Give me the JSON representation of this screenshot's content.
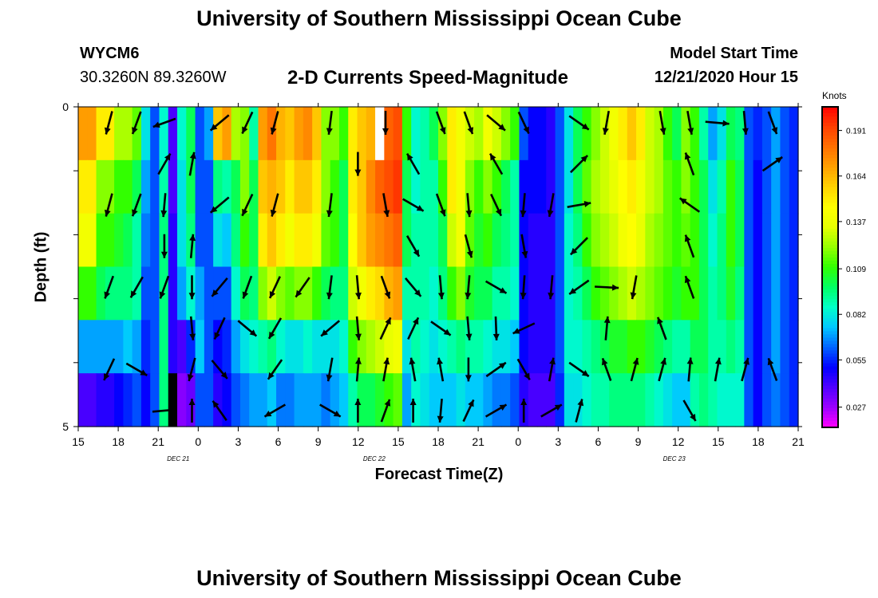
{
  "header": {
    "title": "University of Southern Mississippi Ocean Cube",
    "station": "WYCM6",
    "coords": "30.3260N 89.3260W",
    "plot_title": "2-D Currents Speed-Magnitude",
    "model_label": "Model Start Time",
    "model_time": "12/21/2020 Hour 15"
  },
  "footer": {
    "title": "University of Southern Mississippi Ocean Cube"
  },
  "chart_data": {
    "type": "heatmap",
    "title": "2-D Currents Speed-Magnitude",
    "xlabel": "Forecast Time(Z)",
    "ylabel": "Depth (ft)",
    "colorbar_label": "Knots",
    "x_tick_labels": [
      "15",
      "18",
      "21",
      "0",
      "3",
      "6",
      "9",
      "12",
      "15",
      "18",
      "21",
      "0",
      "3",
      "6",
      "9",
      "12",
      "15",
      "18",
      "21"
    ],
    "date_labels": [
      "DEC 21",
      "DEC 22",
      "DEC 23"
    ],
    "y_tick_labels": [
      "0",
      "5"
    ],
    "ylim": [
      0,
      5
    ],
    "colorbar_ticks": [
      "0.191",
      "0.164",
      "0.137",
      "0.109",
      "0.082",
      "0.055",
      "0.027"
    ],
    "colorscale": [
      "#ff00ff",
      "#9b00ff",
      "#5000ff",
      "#0000ff",
      "#0064ff",
      "#00c8ff",
      "#00ffc8",
      "#00ff64",
      "#32ff00",
      "#96ff00",
      "#e6ff00",
      "#ffff00",
      "#ffd200",
      "#ffa000",
      "#ff7000",
      "#ff4000",
      "#ff0000"
    ],
    "grid": false,
    "rows": [
      [
        0.17,
        0.17,
        0.15,
        0.15,
        0.125,
        0.125,
        0.115,
        0.08,
        0.06,
        0.085,
        0.04,
        0.085,
        0.1,
        0.06,
        0.07,
        0.16,
        0.17,
        0.125,
        0.12,
        0.09,
        0.17,
        0.18,
        0.165,
        0.16,
        0.17,
        0.175,
        0.16,
        0.12,
        0.12,
        0.11,
        0.15,
        0.16,
        0.165,
        0.175,
        0.185,
        0.19,
        0.11,
        0.085,
        0.09,
        0.1,
        0.12,
        0.15,
        0.14,
        0.13,
        0.125,
        0.14,
        0.13,
        0.12,
        0.11,
        0.06,
        0.05,
        0.05,
        0.045,
        0.06,
        0.08,
        0.1,
        0.11,
        0.12,
        0.13,
        0.14,
        0.15,
        0.16,
        0.15,
        0.13,
        0.125,
        0.11,
        0.1,
        0.12,
        0.11,
        0.09,
        0.07,
        0.08,
        0.1,
        0.095,
        0.06,
        0.055,
        0.06,
        0.07,
        0.06,
        0.055
      ],
      [
        0.15,
        0.15,
        0.12,
        0.12,
        0.11,
        0.11,
        0.1,
        0.07,
        0.06,
        0.09,
        0.04,
        0.08,
        0.1,
        0.06,
        0.06,
        0.095,
        0.09,
        0.1,
        0.12,
        0.1,
        0.16,
        0.165,
        0.16,
        0.15,
        0.16,
        0.16,
        0.15,
        0.12,
        0.11,
        0.1,
        0.15,
        0.16,
        0.175,
        0.185,
        0.19,
        0.195,
        0.1,
        0.085,
        0.09,
        0.09,
        0.11,
        0.15,
        0.14,
        0.12,
        0.11,
        0.12,
        0.11,
        0.1,
        0.09,
        0.05,
        0.05,
        0.05,
        0.045,
        0.06,
        0.08,
        0.1,
        0.115,
        0.125,
        0.13,
        0.135,
        0.145,
        0.15,
        0.14,
        0.13,
        0.125,
        0.115,
        0.11,
        0.12,
        0.11,
        0.1,
        0.08,
        0.09,
        0.11,
        0.1,
        0.06,
        0.05,
        0.06,
        0.07,
        0.06,
        0.055
      ],
      [
        0.14,
        0.14,
        0.11,
        0.11,
        0.105,
        0.1,
        0.09,
        0.065,
        0.06,
        0.095,
        0.045,
        0.08,
        0.095,
        0.06,
        0.06,
        0.08,
        0.075,
        0.095,
        0.11,
        0.1,
        0.15,
        0.16,
        0.15,
        0.14,
        0.15,
        0.15,
        0.14,
        0.115,
        0.11,
        0.1,
        0.145,
        0.16,
        0.17,
        0.175,
        0.18,
        0.185,
        0.1,
        0.09,
        0.09,
        0.09,
        0.1,
        0.13,
        0.14,
        0.115,
        0.105,
        0.11,
        0.1,
        0.095,
        0.09,
        0.05,
        0.045,
        0.045,
        0.045,
        0.06,
        0.085,
        0.095,
        0.11,
        0.12,
        0.125,
        0.13,
        0.14,
        0.145,
        0.135,
        0.125,
        0.12,
        0.115,
        0.11,
        0.115,
        0.11,
        0.1,
        0.085,
        0.095,
        0.11,
        0.1,
        0.06,
        0.05,
        0.06,
        0.07,
        0.06,
        0.055
      ],
      [
        0.11,
        0.11,
        0.1,
        0.095,
        0.095,
        0.095,
        0.09,
        0.06,
        0.06,
        0.095,
        0.045,
        0.07,
        0.085,
        0.07,
        0.06,
        0.06,
        0.06,
        0.085,
        0.1,
        0.095,
        0.12,
        0.13,
        0.12,
        0.115,
        0.12,
        0.12,
        0.11,
        0.1,
        0.095,
        0.095,
        0.13,
        0.14,
        0.15,
        0.155,
        0.165,
        0.17,
        0.09,
        0.09,
        0.09,
        0.085,
        0.095,
        0.11,
        0.12,
        0.105,
        0.1,
        0.1,
        0.09,
        0.09,
        0.085,
        0.05,
        0.045,
        0.045,
        0.045,
        0.06,
        0.085,
        0.09,
        0.1,
        0.11,
        0.115,
        0.12,
        0.125,
        0.13,
        0.125,
        0.12,
        0.115,
        0.11,
        0.105,
        0.11,
        0.11,
        0.1,
        0.09,
        0.095,
        0.105,
        0.095,
        0.06,
        0.05,
        0.06,
        0.07,
        0.06,
        0.055
      ],
      [
        0.07,
        0.07,
        0.07,
        0.07,
        0.07,
        0.075,
        0.07,
        0.055,
        0.06,
        0.095,
        0.045,
        0.04,
        0.055,
        0.075,
        0.06,
        0.05,
        0.055,
        0.07,
        0.08,
        0.085,
        0.09,
        0.095,
        0.085,
        0.08,
        0.08,
        0.085,
        0.08,
        0.08,
        0.08,
        0.085,
        0.11,
        0.12,
        0.125,
        0.13,
        0.135,
        0.14,
        0.08,
        0.09,
        0.085,
        0.08,
        0.085,
        0.09,
        0.095,
        0.09,
        0.09,
        0.085,
        0.08,
        0.08,
        0.075,
        0.05,
        0.045,
        0.045,
        0.045,
        0.06,
        0.085,
        0.085,
        0.09,
        0.095,
        0.1,
        0.105,
        0.105,
        0.11,
        0.11,
        0.105,
        0.1,
        0.095,
        0.09,
        0.09,
        0.1,
        0.1,
        0.09,
        0.09,
        0.095,
        0.09,
        0.06,
        0.05,
        0.06,
        0.07,
        0.06,
        0.055
      ],
      [
        0.04,
        0.04,
        0.045,
        0.045,
        0.05,
        0.055,
        0.06,
        0.05,
        0.06,
        0.095,
        0.04,
        0.03,
        0.035,
        0.06,
        0.06,
        0.045,
        0.05,
        0.06,
        0.065,
        0.07,
        0.07,
        0.075,
        0.065,
        0.065,
        0.07,
        0.07,
        0.07,
        0.065,
        0.07,
        0.075,
        0.09,
        0.1,
        0.1,
        0.105,
        0.11,
        0.115,
        0.07,
        0.085,
        0.08,
        0.075,
        0.075,
        0.075,
        0.08,
        0.075,
        0.075,
        0.07,
        0.065,
        0.065,
        0.06,
        0.045,
        0.04,
        0.04,
        0.04,
        0.055,
        0.08,
        0.08,
        0.085,
        0.09,
        0.09,
        0.095,
        0.095,
        0.095,
        0.095,
        0.09,
        0.085,
        0.08,
        0.075,
        0.075,
        0.09,
        0.095,
        0.09,
        0.085,
        0.085,
        0.085,
        0.06,
        0.05,
        0.06,
        0.065,
        0.06,
        0.055
      ]
    ],
    "special_cells": [
      {
        "col": 33,
        "row": 0,
        "color": "#ffffff"
      },
      {
        "col": 10,
        "row": 5,
        "color": "#000000"
      }
    ],
    "vectors": [
      [
        [
          1,
          195
        ],
        [
          2,
          200
        ],
        null,
        [
          3,
          250
        ],
        null,
        [
          5,
          230
        ],
        [
          6,
          205
        ],
        [
          7,
          195
        ],
        null,
        [
          9,
          187
        ],
        null,
        [
          11,
          180
        ],
        null,
        [
          13,
          160
        ],
        [
          14,
          160
        ],
        [
          15,
          130
        ],
        [
          16,
          155
        ],
        null,
        [
          18,
          125
        ],
        [
          19,
          190
        ],
        null,
        [
          21,
          170
        ],
        [
          22,
          170
        ],
        [
          23,
          95
        ],
        [
          24,
          175
        ],
        [
          25,
          160
        ]
      ],
      [
        null,
        null,
        null,
        [
          3,
          30
        ],
        [
          4,
          10
        ],
        null,
        null,
        null,
        null,
        null,
        [
          10,
          180
        ],
        null,
        [
          12,
          330
        ],
        null,
        null,
        [
          15,
          330
        ],
        null,
        null,
        [
          18,
          45
        ],
        null,
        null,
        null,
        [
          22,
          340
        ],
        null,
        null,
        [
          25,
          55
        ]
      ],
      [
        [
          1,
          195
        ],
        [
          2,
          200
        ],
        [
          3,
          185
        ],
        null,
        [
          5,
          230
        ],
        [
          6,
          205
        ],
        [
          7,
          195
        ],
        null,
        [
          9,
          187
        ],
        null,
        [
          11,
          170
        ],
        [
          12,
          120
        ],
        [
          13,
          160
        ],
        [
          14,
          175
        ],
        [
          15,
          155
        ],
        [
          16,
          185
        ],
        [
          17,
          190
        ],
        [
          18,
          80
        ],
        null,
        null,
        null,
        null,
        [
          22,
          305
        ],
        null,
        null,
        null
      ],
      [
        null,
        null,
        [
          3,
          180
        ],
        [
          4,
          5
        ],
        null,
        null,
        null,
        null,
        null,
        null,
        null,
        [
          12,
          150
        ],
        null,
        [
          14,
          165
        ],
        null,
        [
          16,
          170
        ],
        null,
        [
          18,
          225
        ],
        null,
        null,
        null,
        null,
        [
          22,
          340
        ],
        null,
        null,
        null
      ],
      [
        [
          1,
          200
        ],
        [
          2,
          210
        ],
        [
          3,
          200
        ],
        [
          4,
          180
        ],
        [
          5,
          220
        ],
        [
          6,
          200
        ],
        [
          7,
          205
        ],
        [
          8,
          215
        ],
        [
          9,
          187
        ],
        [
          10,
          175
        ],
        [
          11,
          160
        ],
        [
          12,
          140
        ],
        [
          13,
          175
        ],
        [
          14,
          185
        ],
        [
          15,
          120
        ],
        [
          16,
          184
        ],
        [
          17,
          185
        ],
        [
          18,
          235
        ],
        [
          19,
          93
        ],
        [
          20,
          190
        ],
        null,
        [
          22,
          340
        ],
        null,
        null,
        null
      ],
      [
        null,
        null,
        null,
        [
          4,
          175
        ],
        [
          5,
          205
        ],
        [
          6,
          130
        ],
        [
          7,
          210
        ],
        null,
        [
          9,
          230
        ],
        [
          10,
          175
        ],
        [
          11,
          25
        ],
        [
          12,
          25
        ],
        [
          13,
          125
        ],
        [
          14,
          175
        ],
        [
          15,
          178
        ],
        [
          16,
          245
        ],
        null,
        null,
        [
          19,
          5
        ],
        null,
        [
          21,
          340
        ],
        null,
        null,
        null,
        null
      ],
      [
        [
          1,
          205
        ],
        [
          2,
          120
        ],
        null,
        [
          4,
          195
        ],
        [
          5,
          140
        ],
        null,
        [
          7,
          215
        ],
        null,
        [
          9,
          190
        ],
        [
          10,
          5
        ],
        [
          11,
          10
        ],
        [
          12,
          350
        ],
        [
          13,
          350
        ],
        [
          14,
          180
        ],
        [
          15,
          55
        ],
        [
          16,
          150
        ],
        [
          17,
          10
        ],
        [
          18,
          125
        ],
        [
          19,
          340
        ],
        [
          20,
          15
        ],
        [
          21,
          15
        ],
        [
          22,
          5
        ],
        [
          23,
          10
        ],
        [
          24,
          15
        ],
        [
          25,
          340
        ]
      ],
      [
        null,
        null,
        [
          3,
          85
        ],
        [
          4,
          0
        ],
        [
          5,
          325
        ],
        null,
        [
          7,
          240
        ],
        null,
        [
          9,
          120
        ],
        [
          10,
          0
        ],
        [
          11,
          20
        ],
        [
          12,
          0
        ],
        [
          13,
          185
        ],
        [
          14,
          25
        ],
        [
          15,
          60
        ],
        [
          16,
          0
        ],
        [
          17,
          60
        ],
        [
          18,
          15
        ],
        null,
        null,
        null,
        null,
        [
          22,
          150
        ],
        null,
        null
      ]
    ]
  }
}
